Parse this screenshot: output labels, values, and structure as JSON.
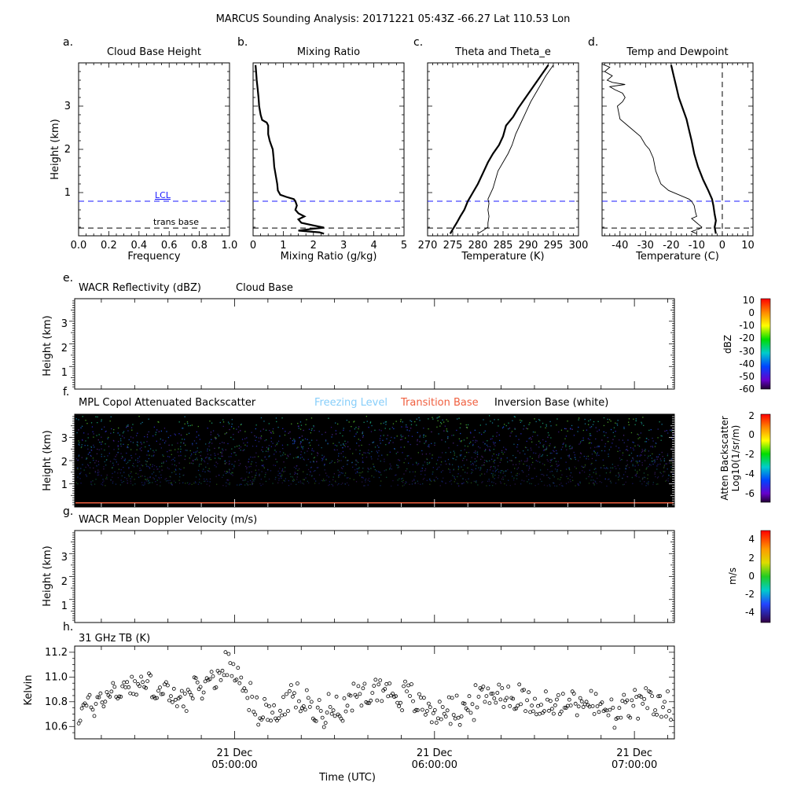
{
  "figure": {
    "title": "MARCUS Sounding Analysis: 20171221 05:43Z   -66.27 Lat  110.53 Lon"
  },
  "colors": {
    "lcl": "#1a1aff",
    "trans_base": "#000000",
    "freezing_level": "#87cefa",
    "transition_base": "#f06040",
    "inversion_base": "#000000"
  },
  "chart_data": [
    {
      "panel": "a.",
      "type": "line",
      "title": "Cloud Base Height",
      "xlabel": "Frequency",
      "ylabel": "Height (km)",
      "xlim": [
        0,
        1
      ],
      "ylim": [
        0,
        4
      ],
      "xticks": [
        "0.0",
        "0.2",
        "0.4",
        "0.6",
        "0.8",
        "1.0"
      ],
      "yticks": [
        "1",
        "2",
        "3"
      ],
      "annotations": [
        {
          "text": "LCL",
          "y": 0.8,
          "style": "dashed",
          "color": "#1a1aff"
        },
        {
          "text": "trans base",
          "y": 0.18,
          "style": "dashed",
          "color": "#000000"
        }
      ]
    },
    {
      "panel": "b.",
      "type": "line",
      "title": "Mixing Ratio",
      "xlabel": "Mixing Ratio (g/kg)",
      "ylabel": "",
      "xlim": [
        0,
        5
      ],
      "ylim": [
        0,
        4
      ],
      "xticks": [
        "0",
        "1",
        "2",
        "3",
        "4",
        "5"
      ],
      "lcl": 0.8,
      "trans_base": 0.18,
      "series": [
        {
          "points": [
            [
              2.35,
              0.05
            ],
            [
              2.2,
              0.08
            ],
            [
              1.5,
              0.12
            ],
            [
              1.95,
              0.16
            ],
            [
              2.35,
              0.19
            ],
            [
              2.0,
              0.24
            ],
            [
              1.6,
              0.3
            ],
            [
              1.5,
              0.38
            ],
            [
              1.7,
              0.45
            ],
            [
              1.5,
              0.52
            ],
            [
              1.4,
              0.6
            ],
            [
              1.45,
              0.7
            ],
            [
              1.4,
              0.8
            ],
            [
              1.35,
              0.85
            ],
            [
              1.1,
              0.9
            ],
            [
              0.9,
              0.95
            ],
            [
              0.82,
              1.05
            ],
            [
              0.8,
              1.2
            ],
            [
              0.75,
              1.4
            ],
            [
              0.7,
              1.6
            ],
            [
              0.68,
              1.8
            ],
            [
              0.65,
              2.0
            ],
            [
              0.6,
              2.1
            ],
            [
              0.55,
              2.2
            ],
            [
              0.5,
              2.35
            ],
            [
              0.5,
              2.55
            ],
            [
              0.45,
              2.62
            ],
            [
              0.3,
              2.68
            ],
            [
              0.25,
              2.8
            ],
            [
              0.2,
              3.0
            ],
            [
              0.18,
              3.2
            ],
            [
              0.15,
              3.4
            ],
            [
              0.12,
              3.6
            ],
            [
              0.1,
              3.8
            ],
            [
              0.08,
              3.95
            ]
          ]
        }
      ]
    },
    {
      "panel": "c.",
      "type": "line",
      "title": "Theta and Theta_e",
      "xlabel": "Temperature (K)",
      "ylabel": "",
      "xlim": [
        270,
        300
      ],
      "ylim": [
        0,
        4
      ],
      "xticks": [
        "270",
        "275",
        "280",
        "285",
        "290",
        "295",
        "300"
      ],
      "lcl": 0.8,
      "trans_base": 0.18,
      "series": [
        {
          "name": "theta",
          "points": [
            [
              274.5,
              0.05
            ],
            [
              275.0,
              0.15
            ],
            [
              275.8,
              0.3
            ],
            [
              276.5,
              0.45
            ],
            [
              277.3,
              0.6
            ],
            [
              278.0,
              0.8
            ],
            [
              279.0,
              1.0
            ],
            [
              280.0,
              1.2
            ],
            [
              281.0,
              1.45
            ],
            [
              282.0,
              1.7
            ],
            [
              283.0,
              1.9
            ],
            [
              284.2,
              2.1
            ],
            [
              285.0,
              2.3
            ],
            [
              285.6,
              2.55
            ],
            [
              287.0,
              2.75
            ],
            [
              288.0,
              2.95
            ],
            [
              289.5,
              3.2
            ],
            [
              291.0,
              3.45
            ],
            [
              292.5,
              3.7
            ],
            [
              294.0,
              3.95
            ]
          ]
        },
        {
          "name": "theta_e",
          "points": [
            [
              280.0,
              0.05
            ],
            [
              281.0,
              0.12
            ],
            [
              282.0,
              0.2
            ],
            [
              282.0,
              0.3
            ],
            [
              282.2,
              0.45
            ],
            [
              282.0,
              0.6
            ],
            [
              282.2,
              0.75
            ],
            [
              282.0,
              0.85
            ],
            [
              283.0,
              1.1
            ],
            [
              283.5,
              1.3
            ],
            [
              284.0,
              1.5
            ],
            [
              285.0,
              1.7
            ],
            [
              286.0,
              1.9
            ],
            [
              286.8,
              2.1
            ],
            [
              287.5,
              2.35
            ],
            [
              288.5,
              2.6
            ],
            [
              289.5,
              2.85
            ],
            [
              290.5,
              3.1
            ],
            [
              292.0,
              3.4
            ],
            [
              293.5,
              3.7
            ],
            [
              295.0,
              3.95
            ]
          ]
        }
      ]
    },
    {
      "panel": "d.",
      "type": "line",
      "title": "Temp and Dewpoint",
      "xlabel": "Temperature (C)",
      "ylabel": "",
      "xlim": [
        -47,
        12
      ],
      "ylim": [
        0,
        4
      ],
      "xticks": [
        "-40",
        "-30",
        "-20",
        "-10",
        "0",
        "10"
      ],
      "xtick_values": [
        -40,
        -30,
        -20,
        -10,
        0,
        10
      ],
      "lcl": 0.8,
      "trans_base": 0.18,
      "zero_line": 0,
      "series": [
        {
          "name": "temperature",
          "points": [
            [
              -2.5,
              0.05
            ],
            [
              -3.0,
              0.2
            ],
            [
              -2.5,
              0.35
            ],
            [
              -3.0,
              0.5
            ],
            [
              -3.5,
              0.7
            ],
            [
              -4.0,
              0.85
            ],
            [
              -5.5,
              1.05
            ],
            [
              -7.5,
              1.3
            ],
            [
              -9.5,
              1.6
            ],
            [
              -11.0,
              1.9
            ],
            [
              -12.0,
              2.2
            ],
            [
              -13.0,
              2.45
            ],
            [
              -14.0,
              2.7
            ],
            [
              -15.5,
              2.95
            ],
            [
              -17.0,
              3.2
            ],
            [
              -18.0,
              3.45
            ],
            [
              -19.0,
              3.7
            ],
            [
              -20.0,
              3.95
            ]
          ]
        },
        {
          "name": "dewpoint",
          "points": [
            [
              -10.0,
              0.05
            ],
            [
              -12.0,
              0.1
            ],
            [
              -9.0,
              0.16
            ],
            [
              -8.0,
              0.2
            ],
            [
              -10.0,
              0.3
            ],
            [
              -12.0,
              0.4
            ],
            [
              -10.0,
              0.45
            ],
            [
              -10.5,
              0.55
            ],
            [
              -11.0,
              0.7
            ],
            [
              -12.0,
              0.8
            ],
            [
              -13.0,
              0.85
            ],
            [
              -17.0,
              0.95
            ],
            [
              -21.0,
              1.05
            ],
            [
              -24.0,
              1.2
            ],
            [
              -26.0,
              1.5
            ],
            [
              -27.0,
              1.8
            ],
            [
              -28.5,
              2.0
            ],
            [
              -30.0,
              2.1
            ],
            [
              -32.0,
              2.3
            ],
            [
              -36.0,
              2.5
            ],
            [
              -40.0,
              2.7
            ],
            [
              -41.0,
              3.0
            ],
            [
              -39.0,
              3.1
            ],
            [
              -38.0,
              3.2
            ],
            [
              -39.0,
              3.3
            ],
            [
              -42.0,
              3.38
            ],
            [
              -44.0,
              3.45
            ],
            [
              -38.0,
              3.5
            ],
            [
              -43.0,
              3.55
            ],
            [
              -45.0,
              3.6
            ],
            [
              -43.0,
              3.7
            ],
            [
              -46.0,
              3.8
            ],
            [
              -44.0,
              3.9
            ],
            [
              -47.0,
              3.97
            ]
          ]
        }
      ]
    },
    {
      "panel": "e.",
      "type": "heatmap",
      "title": "WACR Reflectivity (dBZ)",
      "legend_text": "Cloud Base",
      "ylabel": "Height (km)",
      "ylim": [
        0,
        4
      ],
      "yticks": [
        "1",
        "2",
        "3"
      ],
      "colorbar": {
        "label": "dBZ",
        "ticks": [
          "10",
          "0",
          "-10",
          "-20",
          "-30",
          "-40",
          "-50",
          "-60"
        ],
        "range": [
          -60,
          10
        ]
      }
    },
    {
      "panel": "f.",
      "type": "heatmap",
      "title": "MPL Copol Attenuated Backscatter",
      "legend_entries": [
        {
          "text": "Freezing Level",
          "color": "#87cefa"
        },
        {
          "text": "Transition Base",
          "color": "#f06040"
        },
        {
          "text": "Inversion Base (white)",
          "color": "#000000"
        }
      ],
      "ylabel": "Height (km)",
      "ylim": [
        0,
        4
      ],
      "yticks": [
        "1",
        "2",
        "3"
      ],
      "transition_base_km": 0.18,
      "colorbar": {
        "label_line1": "Atten Backscatter",
        "label_line2": "Log10(1/sr/m)",
        "ticks": [
          "2",
          "0",
          "-2",
          "-4",
          "-6"
        ],
        "range": [
          -7,
          2
        ]
      }
    },
    {
      "panel": "g.",
      "type": "heatmap",
      "title": "WACR Mean Doppler Velocity (m/s)",
      "ylabel": "Height (km)",
      "ylim": [
        0,
        4
      ],
      "yticks": [
        "1",
        "2",
        "3"
      ],
      "colorbar": {
        "label": "m/s",
        "ticks": [
          "4",
          "2",
          "0",
          "-2",
          "-4"
        ],
        "range": [
          -5,
          5
        ]
      }
    },
    {
      "panel": "h.",
      "type": "scatter",
      "title": "31 GHz TB (K)",
      "ylabel": "Kelvin",
      "xlabel": "Time (UTC)",
      "ylim": [
        10.5,
        11.25
      ],
      "yticks": [
        "11.2",
        "11.0",
        "10.8",
        "10.6"
      ],
      "ytick_values": [
        11.2,
        11.0,
        10.8,
        10.6
      ],
      "x_range_hours": [
        4.2,
        7.2
      ],
      "xticks": [
        {
          "hours": 5.0,
          "line1": "21 Dec",
          "line2": "05:00:00"
        },
        {
          "hours": 6.0,
          "line1": "21 Dec",
          "line2": "06:00:00"
        },
        {
          "hours": 7.0,
          "line1": "21 Dec",
          "line2": "07:00:00"
        }
      ],
      "series_trend": [
        [
          4.2,
          10.68
        ],
        [
          4.35,
          10.85
        ],
        [
          4.5,
          10.95
        ],
        [
          4.6,
          10.92
        ],
        [
          4.7,
          10.82
        ],
        [
          4.8,
          10.85
        ],
        [
          4.95,
          11.08
        ],
        [
          5.02,
          11.05
        ],
        [
          5.1,
          10.75
        ],
        [
          5.2,
          10.68
        ],
        [
          5.3,
          10.85
        ],
        [
          5.4,
          10.72
        ],
        [
          5.55,
          10.78
        ],
        [
          5.7,
          10.92
        ],
        [
          5.85,
          10.85
        ],
        [
          6.0,
          10.72
        ],
        [
          6.15,
          10.75
        ],
        [
          6.3,
          10.88
        ],
        [
          6.45,
          10.82
        ],
        [
          6.6,
          10.75
        ],
        [
          6.75,
          10.82
        ],
        [
          6.9,
          10.68
        ],
        [
          7.0,
          10.78
        ],
        [
          7.2,
          10.75
        ]
      ]
    }
  ]
}
